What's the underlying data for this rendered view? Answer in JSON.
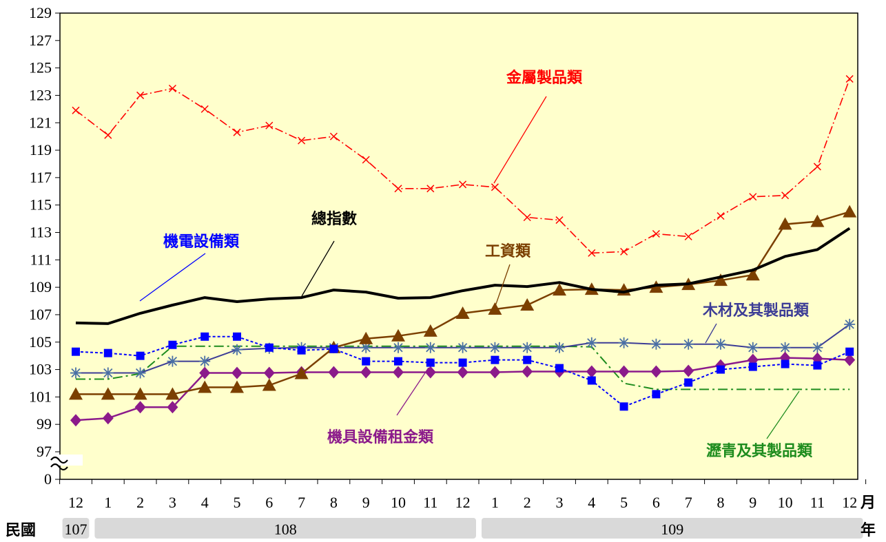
{
  "chart_data": {
    "type": "line",
    "x_labels": [
      "12",
      "1",
      "2",
      "3",
      "4",
      "5",
      "6",
      "7",
      "8",
      "9",
      "10",
      "11",
      "12",
      "1",
      "2",
      "3",
      "4",
      "5",
      "6",
      "7",
      "8",
      "9",
      "10",
      "11",
      "12"
    ],
    "x_unit": "月",
    "year_caption": "民國",
    "year_unit": "年",
    "year_bands": [
      {
        "label": "107",
        "start": 0,
        "end": 0
      },
      {
        "label": "108",
        "start": 1,
        "end": 12
      },
      {
        "label": "109",
        "start": 13,
        "end": 24
      }
    ],
    "y_ticks": [
      "129",
      "127",
      "125",
      "123",
      "121",
      "119",
      "117",
      "115",
      "113",
      "111",
      "109",
      "107",
      "105",
      "103",
      "101",
      "99",
      "97",
      "0"
    ],
    "ylim": [
      97,
      129
    ],
    "y_axis_break": true,
    "series": [
      {
        "name": "金屬製品類",
        "color": "#ff0000",
        "style": "dashdot-x",
        "values": [
          121.9,
          120.1,
          123.0,
          123.5,
          122.0,
          120.3,
          120.8,
          119.7,
          120.0,
          118.3,
          116.2,
          116.2,
          116.5,
          116.3,
          114.1,
          113.9,
          111.5,
          111.6,
          112.9,
          112.7,
          114.2,
          115.6,
          115.7,
          117.8,
          124.2
        ]
      },
      {
        "name": "總指數",
        "color": "#000000",
        "style": "solid-bold",
        "values": [
          106.4,
          106.35,
          107.1,
          107.7,
          108.25,
          107.95,
          108.15,
          108.25,
          108.8,
          108.65,
          108.2,
          108.25,
          108.75,
          109.15,
          109.05,
          109.35,
          108.85,
          108.65,
          109.15,
          109.25,
          109.75,
          110.25,
          111.25,
          111.75,
          113.3
        ]
      },
      {
        "name": "工資類",
        "color": "#7b3f00",
        "style": "solid-triangle",
        "values": [
          101.2,
          101.2,
          101.2,
          101.2,
          101.7,
          101.7,
          101.85,
          102.7,
          104.6,
          105.25,
          105.45,
          105.8,
          107.1,
          107.4,
          107.7,
          108.8,
          108.85,
          108.8,
          109.0,
          109.2,
          109.5,
          109.9,
          113.6,
          113.8,
          114.5
        ]
      },
      {
        "name": "機電設備類",
        "color": "#0000ff",
        "style": "dotted-square",
        "values": [
          104.3,
          104.2,
          104.0,
          104.8,
          105.4,
          105.4,
          104.6,
          104.4,
          104.5,
          103.6,
          103.6,
          103.5,
          103.5,
          103.7,
          103.7,
          103.1,
          102.2,
          100.3,
          101.2,
          102.05,
          103.0,
          103.2,
          103.4,
          103.3,
          104.3
        ]
      },
      {
        "name": "木材及其製品類",
        "color": "#3c3c96",
        "style": "solid-star",
        "values": [
          102.75,
          102.75,
          102.75,
          103.6,
          103.6,
          104.45,
          104.55,
          104.6,
          104.6,
          104.6,
          104.6,
          104.6,
          104.6,
          104.6,
          104.6,
          104.6,
          104.95,
          104.95,
          104.85,
          104.85,
          104.85,
          104.6,
          104.6,
          104.6,
          106.3
        ]
      },
      {
        "name": "瀝青及其製品類",
        "color": "#1e8c1e",
        "style": "dashdot",
        "values": [
          102.3,
          102.3,
          102.7,
          104.7,
          104.7,
          104.7,
          104.7,
          104.7,
          104.7,
          104.7,
          104.7,
          104.7,
          104.7,
          104.7,
          104.7,
          104.7,
          104.65,
          102.0,
          101.55,
          101.55,
          101.55,
          101.55,
          101.55,
          101.55,
          101.55
        ]
      },
      {
        "name": "機具設備租金類",
        "color": "#8b1a8b",
        "style": "solid-diamond",
        "values": [
          99.3,
          99.45,
          100.25,
          100.25,
          102.75,
          102.75,
          102.75,
          102.8,
          102.8,
          102.8,
          102.8,
          102.8,
          102.8,
          102.8,
          102.85,
          102.85,
          102.85,
          102.85,
          102.85,
          102.9,
          103.3,
          103.7,
          103.85,
          103.8,
          103.7
        ]
      }
    ]
  }
}
